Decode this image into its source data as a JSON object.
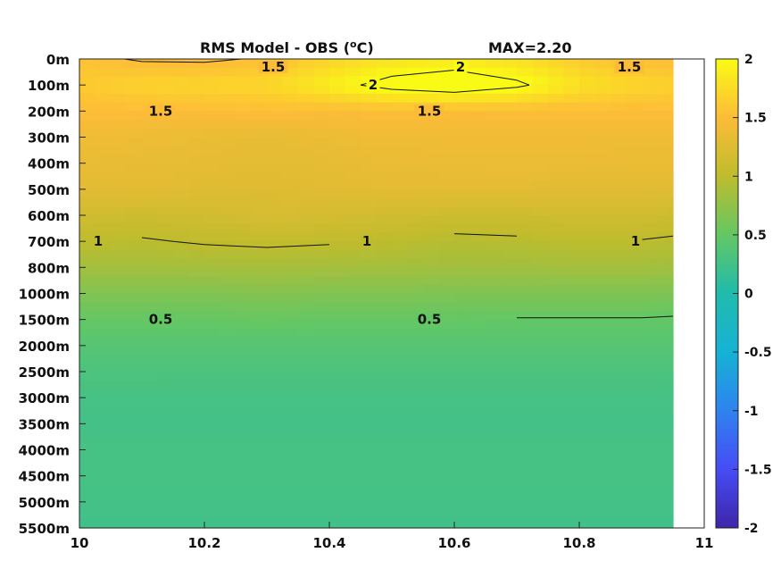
{
  "chart_data": {
    "type": "heatmap",
    "title": "RMS Model - OBS (",
    "title_unit_sup": "o",
    "title_unit_tail": "C)",
    "max_label": "MAX=2.20",
    "xlabel": "",
    "ylabel": "",
    "x_ticks": [
      "10",
      "10.2",
      "10.4",
      "10.6",
      "10.8",
      "11"
    ],
    "xlim": [
      10,
      11
    ],
    "data_x_max": 10.95,
    "depth_labels": [
      "0m",
      "100m",
      "200m",
      "300m",
      "400m",
      "500m",
      "600m",
      "700m",
      "800m",
      "1000m",
      "1500m",
      "2000m",
      "2500m",
      "3000m",
      "3500m",
      "4000m",
      "4500m",
      "5000m",
      "5500m"
    ],
    "colorbar": {
      "ticks": [
        "2",
        "1.5",
        "1",
        "0.5",
        "0",
        "-0.5",
        "-1",
        "-1.5",
        "-2"
      ],
      "clim": [
        -2,
        2
      ],
      "colormap": "parula"
    },
    "x": [
      10.0,
      10.1,
      10.2,
      10.3,
      10.4,
      10.5,
      10.6,
      10.7,
      10.8,
      10.9,
      10.95
    ],
    "values": [
      [
        1.55,
        1.48,
        1.47,
        1.52,
        1.68,
        1.8,
        1.85,
        1.78,
        1.62,
        1.52,
        1.5
      ],
      [
        1.62,
        1.68,
        1.7,
        1.72,
        1.9,
        2.1,
        2.2,
        2.05,
        1.8,
        1.7,
        1.68
      ],
      [
        1.5,
        1.5,
        1.5,
        1.52,
        1.5,
        1.5,
        1.49,
        1.5,
        1.5,
        1.5,
        1.5
      ],
      [
        1.4,
        1.38,
        1.35,
        1.32,
        1.36,
        1.4,
        1.4,
        1.4,
        1.4,
        1.4,
        1.4
      ],
      [
        1.35,
        1.33,
        1.32,
        1.3,
        1.32,
        1.35,
        1.36,
        1.37,
        1.36,
        1.35,
        1.35
      ],
      [
        1.28,
        1.3,
        1.26,
        1.25,
        1.28,
        1.3,
        1.3,
        1.3,
        1.28,
        1.28,
        1.28
      ],
      [
        1.15,
        1.12,
        1.15,
        1.2,
        1.18,
        1.15,
        1.12,
        1.12,
        1.15,
        1.15,
        1.12
      ],
      [
        1.0,
        0.98,
        1.02,
        1.04,
        1.02,
        1.0,
        0.95,
        0.97,
        1.0,
        0.99,
        0.97
      ],
      [
        0.85,
        0.85,
        0.86,
        0.87,
        0.86,
        0.85,
        0.84,
        0.84,
        0.85,
        0.85,
        0.84
      ],
      [
        0.66,
        0.66,
        0.66,
        0.68,
        0.66,
        0.66,
        0.65,
        0.65,
        0.65,
        0.65,
        0.64
      ],
      [
        0.5,
        0.5,
        0.5,
        0.52,
        0.5,
        0.5,
        0.5,
        0.49,
        0.49,
        0.49,
        0.48
      ],
      [
        0.4,
        0.4,
        0.4,
        0.4,
        0.4,
        0.4,
        0.4,
        0.4,
        0.4,
        0.4,
        0.4
      ],
      [
        0.33,
        0.33,
        0.32,
        0.32,
        0.32,
        0.32,
        0.32,
        0.32,
        0.32,
        0.32,
        0.32
      ],
      [
        0.28,
        0.28,
        0.28,
        0.28,
        0.28,
        0.28,
        0.28,
        0.28,
        0.28,
        0.28,
        0.28
      ],
      [
        0.26,
        0.26,
        0.26,
        0.26,
        0.26,
        0.26,
        0.26,
        0.26,
        0.26,
        0.26,
        0.26
      ],
      [
        0.28,
        0.28,
        0.28,
        0.28,
        0.28,
        0.28,
        0.28,
        0.28,
        0.28,
        0.28,
        0.28
      ],
      [
        0.28,
        0.28,
        0.28,
        0.28,
        0.28,
        0.28,
        0.28,
        0.28,
        0.28,
        0.28,
        0.28
      ],
      [
        0.26,
        0.26,
        0.26,
        0.26,
        0.26,
        0.26,
        0.26,
        0.26,
        0.26,
        0.26,
        0.26
      ],
      [
        0.24,
        0.24,
        0.24,
        0.24,
        0.24,
        0.24,
        0.24,
        0.24,
        0.24,
        0.24,
        0.24
      ]
    ],
    "contour_levels": [
      "2",
      "1.5",
      "1",
      "0.5"
    ],
    "contour_labels": [
      {
        "level": "1.5",
        "x": 10.31,
        "depth": "0m"
      },
      {
        "level": "2",
        "x": 10.61,
        "depth": "0m"
      },
      {
        "level": "1.5",
        "x": 10.88,
        "depth": "0m"
      },
      {
        "level": "2",
        "x": 10.47,
        "depth": "100m"
      },
      {
        "level": "1.5",
        "x": 10.13,
        "depth": "200m"
      },
      {
        "level": "1.5",
        "x": 10.56,
        "depth": "200m"
      },
      {
        "level": "1",
        "x": 10.03,
        "depth": "700m"
      },
      {
        "level": "1",
        "x": 10.46,
        "depth": "700m"
      },
      {
        "level": "1",
        "x": 10.89,
        "depth": "700m"
      },
      {
        "level": "0.5",
        "x": 10.13,
        "depth": "1500m"
      },
      {
        "level": "0.5",
        "x": 10.56,
        "depth": "1500m"
      }
    ],
    "grid": false
  }
}
